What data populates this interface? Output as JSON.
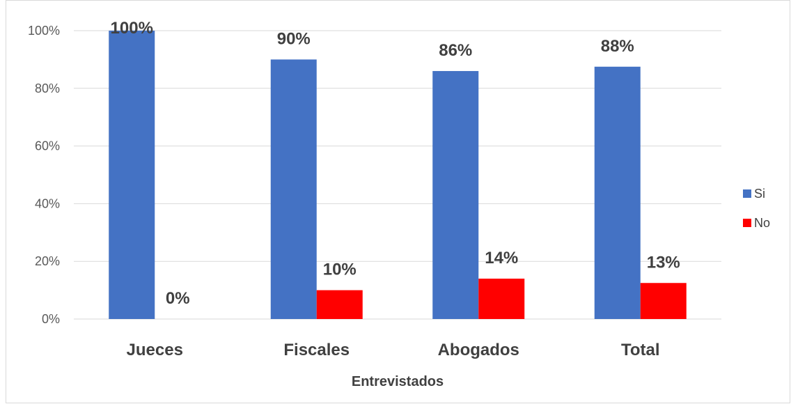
{
  "chart_data": {
    "type": "bar",
    "categories": [
      "Jueces",
      "Fiscales",
      "Abogados",
      "Total"
    ],
    "series": [
      {
        "name": "Si",
        "values": [
          100,
          90,
          86,
          87.5
        ],
        "labels": [
          "100%",
          "90%",
          "86%",
          "88%"
        ],
        "color": "#4472c4"
      },
      {
        "name": "No",
        "values": [
          0,
          10,
          14,
          12.5
        ],
        "labels": [
          "0%",
          "10%",
          "14%",
          "13%"
        ],
        "color": "#ff0000"
      }
    ],
    "title": "",
    "xlabel": "Entrevistados",
    "ylabel": "",
    "ylim": [
      0,
      100
    ],
    "yticks": [
      0,
      20,
      40,
      60,
      80,
      100
    ],
    "ytick_labels": [
      "0%",
      "20%",
      "40%",
      "60%",
      "80%",
      "100%"
    ],
    "grid": true,
    "legend": "right"
  }
}
